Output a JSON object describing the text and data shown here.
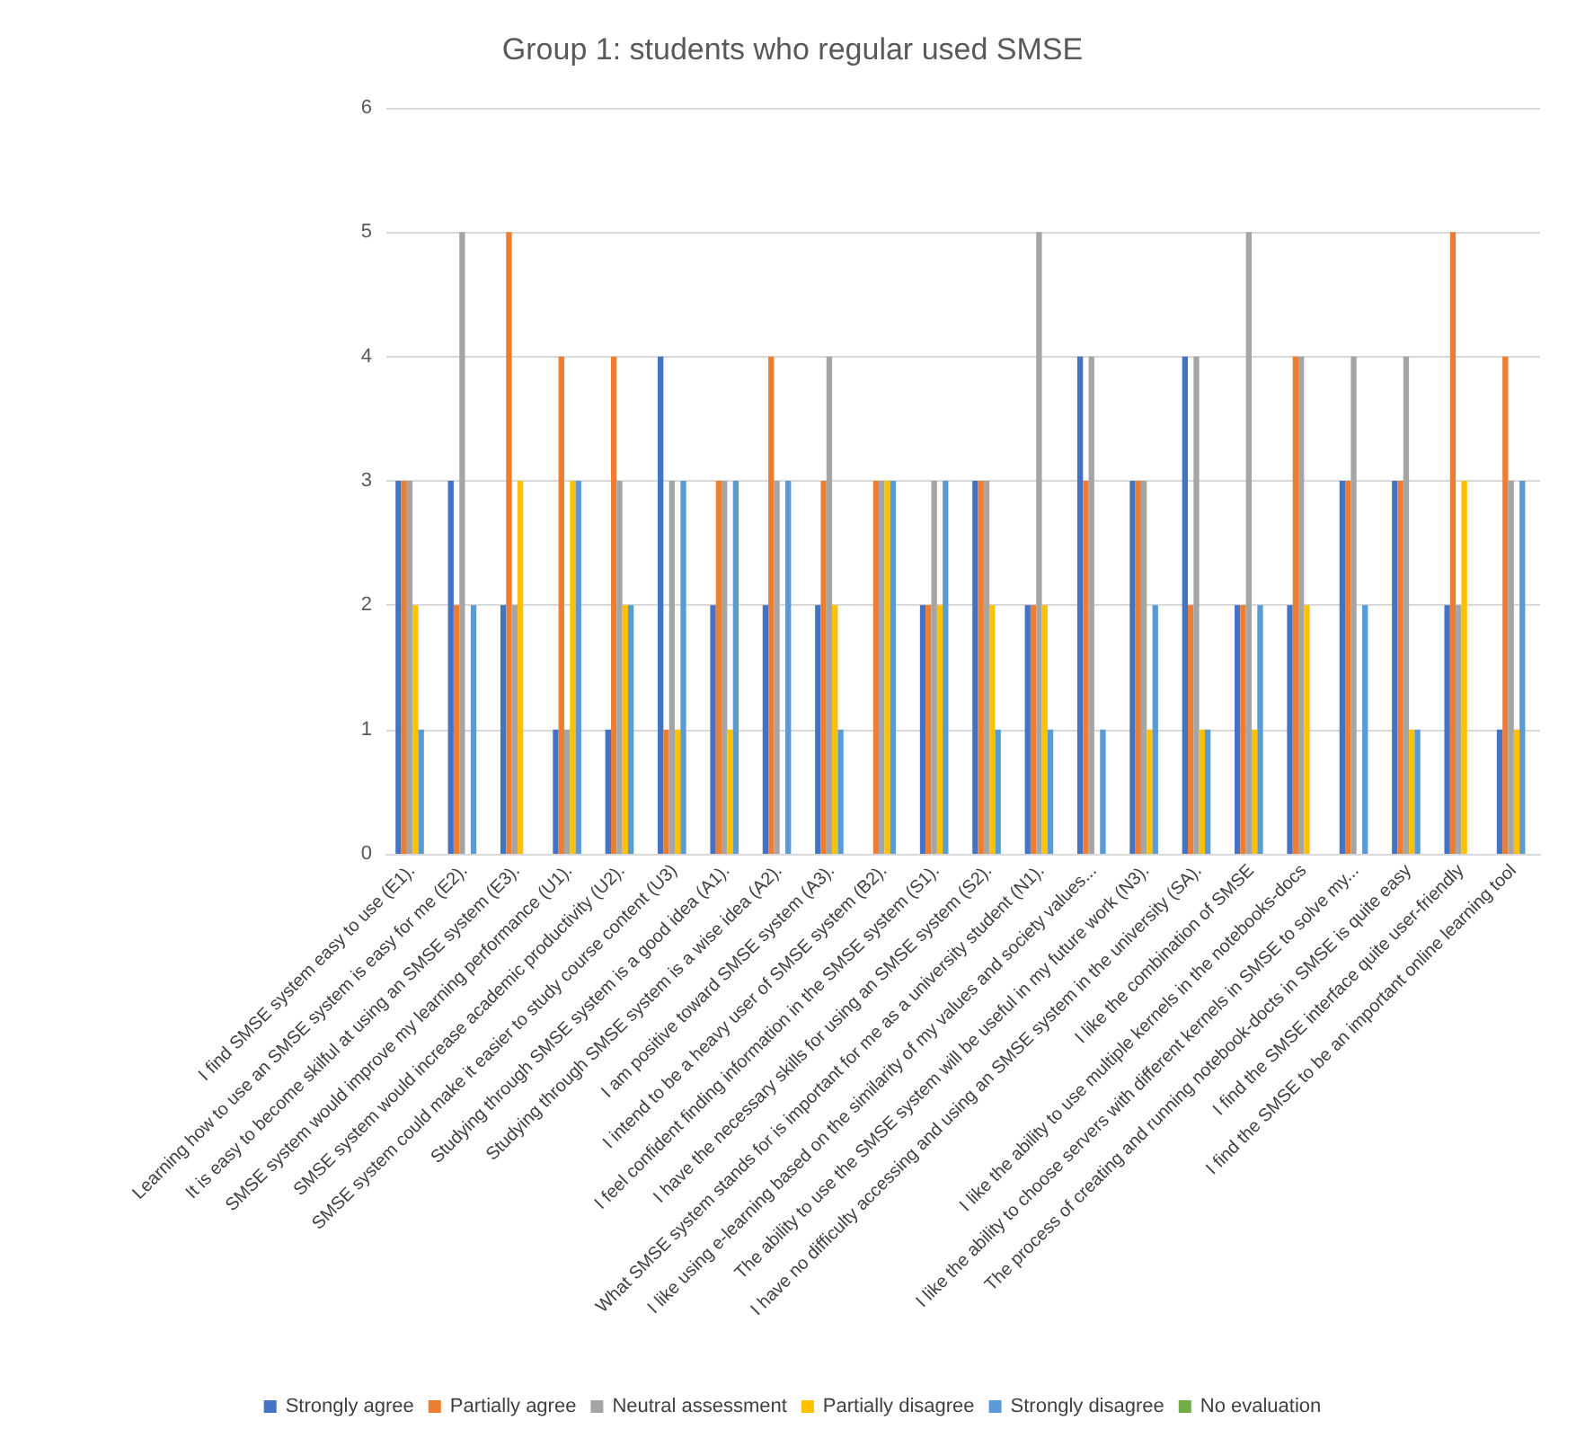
{
  "chart_data": {
    "type": "bar",
    "title": "Group 1: students who regular used SMSE",
    "categories": [
      "I find SMSE system easy to use (E1).",
      "Learning how to use an SMSE system is easy for me (E2).",
      "It is easy to become skilful at using an SMSE system (E3).",
      "SMSE system would improve my learning performance (U1).",
      "SMSE system would increase academic productivity (U2).",
      "SMSE system could make it easier to study course content (U3)",
      "Studying through SMSE system is a good idea (A1).",
      "Studying through SMSE system is a wise idea (A2).",
      "I am positive toward SMSE system (A3).",
      "I intend to be a heavy user of SMSE system (B2).",
      "I feel confident finding information in the SMSE system (S1).",
      "I have the necessary skills for using an SMSE system (S2).",
      "What SMSE system stands for is important for me as a university student (N1).",
      "I like using e-learning based on the similarity of my values and society values...",
      "The ability to use the SMSE system will be useful in my future work (N3).",
      "I have no difficulty accessing and using an SMSE system in the university (SA).",
      "I like the combination of SMSE",
      "I like the ability to use multiple kernels in the notebooks-docs",
      "I like the ability to choose servers with different kernels in SMSE to solve my...",
      "The process of creating and running notebook-docts in SMSE is quite easy",
      "I find the SMSE interface quite user-friendly",
      "I find the SMSE to be an important online learning tool"
    ],
    "series": [
      {
        "name": "Strongly agree",
        "color": "#4472c4",
        "values": [
          3,
          3,
          2,
          1,
          1,
          4,
          2,
          2,
          2,
          0,
          2,
          3,
          2,
          4,
          3,
          4,
          2,
          2,
          3,
          3,
          2,
          1
        ]
      },
      {
        "name": "Partially agree",
        "color": "#ed7d31",
        "values": [
          3,
          2,
          5,
          4,
          4,
          1,
          3,
          4,
          3,
          3,
          2,
          3,
          2,
          3,
          3,
          2,
          2,
          4,
          3,
          3,
          5,
          4
        ]
      },
      {
        "name": "Neutral assessment",
        "color": "#a5a5a5",
        "values": [
          3,
          5,
          2,
          1,
          3,
          3,
          3,
          3,
          4,
          3,
          3,
          3,
          5,
          4,
          3,
          4,
          5,
          4,
          4,
          4,
          2,
          3
        ]
      },
      {
        "name": "Partially disagree",
        "color": "#ffc000",
        "values": [
          2,
          0,
          3,
          3,
          2,
          1,
          1,
          0,
          2,
          3,
          2,
          2,
          2,
          0,
          1,
          1,
          1,
          2,
          0,
          1,
          3,
          1
        ]
      },
      {
        "name": "Strongly disagree",
        "color": "#5b9bd5",
        "values": [
          1,
          2,
          0,
          3,
          2,
          3,
          3,
          3,
          1,
          3,
          3,
          1,
          1,
          1,
          2,
          1,
          2,
          0,
          2,
          1,
          0,
          3
        ]
      },
      {
        "name": "No evaluation",
        "color": "#70ad47",
        "values": [
          0,
          0,
          0,
          0,
          0,
          0,
          0,
          0,
          0,
          0,
          0,
          0,
          0,
          0,
          0,
          0,
          0,
          0,
          0,
          0,
          0,
          0
        ]
      }
    ],
    "ylim": [
      0,
      6
    ],
    "yticks": [
      0,
      1,
      2,
      3,
      4,
      5,
      6
    ],
    "grid": "y",
    "legend": "bottom"
  }
}
